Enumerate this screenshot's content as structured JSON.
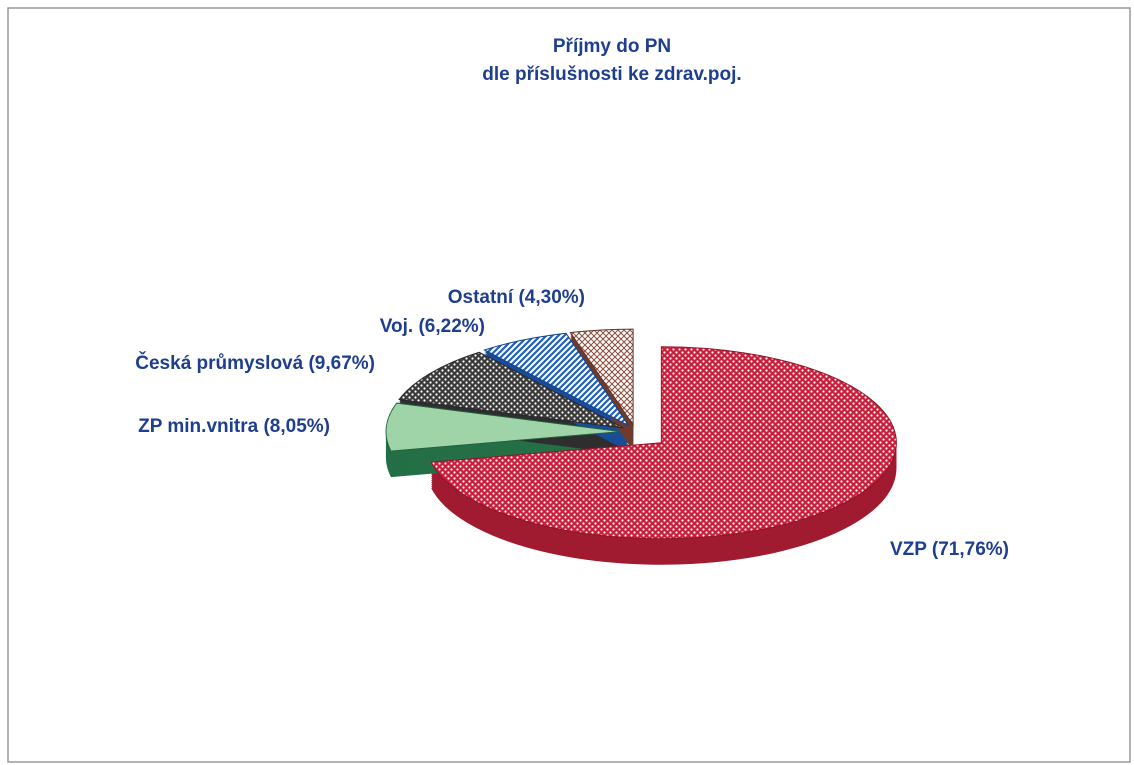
{
  "chart_data": {
    "type": "pie",
    "title": "Příjmy do PN",
    "subtitle": "dle příslušnosti ke zdrav.poj.",
    "values": [
      71.76,
      8.05,
      9.67,
      6.22,
      4.3
    ],
    "value_labels": [
      "VZP (71,76%)",
      "ZP min.vnitra (8,05%)",
      "Česká průmyslová (9,67%)",
      "Voj. (6,22%)",
      "Ostatní (4,30%)"
    ],
    "colors": [
      "#c8203c",
      "#2e8b57",
      "#3a3a3a",
      "#1f5fbf",
      "#8b4a3a"
    ]
  }
}
